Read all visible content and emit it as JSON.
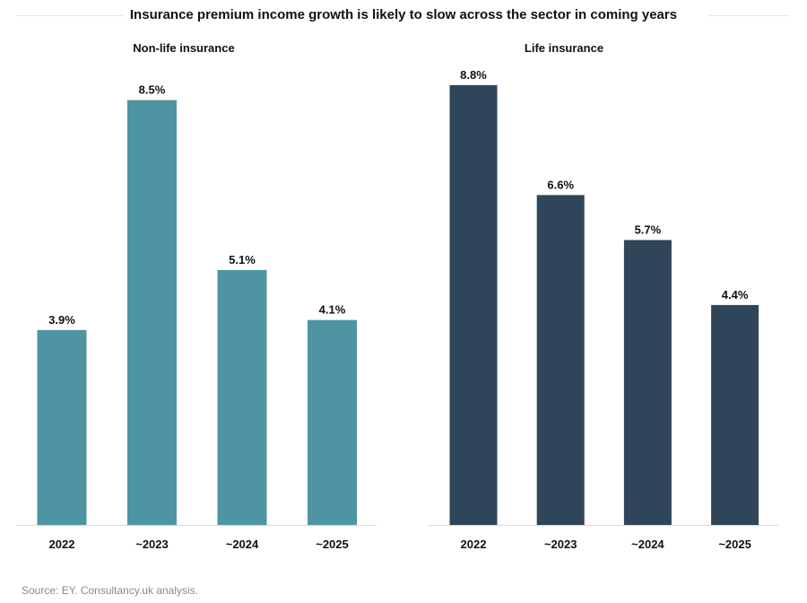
{
  "title": "Insurance premium income growth is likely to slow across the sector in coming years",
  "source": "Source: EY. Consultancy.uk analysis.",
  "colors": {
    "non_life": "#4e94a3",
    "life": "#2f4559",
    "axis": "#d9d9d9"
  },
  "chart_data": [
    {
      "type": "bar",
      "title": "Non-life insurance",
      "categories": [
        "2022",
        "~2023",
        "~2024",
        "~2025"
      ],
      "values": [
        3.9,
        8.5,
        5.1,
        4.1
      ],
      "value_labels": [
        "3.9%",
        "8.5%",
        "5.1%",
        "4.1%"
      ],
      "ylim": [
        0,
        9.3
      ],
      "grid": false
    },
    {
      "type": "bar",
      "title": "Life insurance",
      "categories": [
        "2022",
        "~2023",
        "~2024",
        "~2025"
      ],
      "values": [
        8.8,
        6.6,
        5.7,
        4.4
      ],
      "value_labels": [
        "8.8%",
        "6.6%",
        "5.7%",
        "4.4%"
      ],
      "ylim": [
        0,
        9.3
      ],
      "grid": false
    }
  ]
}
